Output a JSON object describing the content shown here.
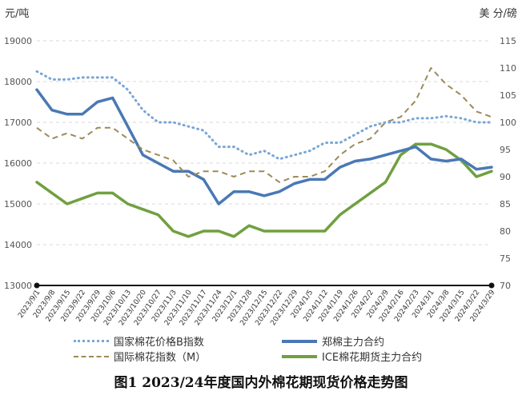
{
  "chart_data": {
    "type": "line",
    "caption": "图1  2023/24年度国内外棉花期现货价格走势图",
    "left_unit": "元/吨",
    "right_unit": "美 分/磅",
    "y_left": {
      "min": 13000,
      "max": 19000,
      "ticks": [
        "13000",
        "14000",
        "15000",
        "16000",
        "17000",
        "18000",
        "19000"
      ]
    },
    "y_right": {
      "min": 70,
      "max": 115,
      "ticks": [
        "70",
        "75",
        "80",
        "85",
        "90",
        "95",
        "100",
        "105",
        "110",
        "115"
      ]
    },
    "x_labels": [
      "2023/9/1",
      "2023/9/8",
      "2023/9/15",
      "2023/9/22",
      "2023/9/29",
      "2023/10/6",
      "2023/10/13",
      "2023/10/20",
      "2023/10/27",
      "2023/11/3",
      "2023/11/10",
      "2023/11/17",
      "2023/11/24",
      "2023/12/1",
      "2023/12/8",
      "2023/12/15",
      "2023/12/22",
      "2023/12/29",
      "2024/1/5",
      "2024/1/12",
      "2024/1/19",
      "2024/1/26",
      "2024/2/2",
      "2024/2/9",
      "2024/2/16",
      "2024/2/23",
      "2024/3/1",
      "2024/3/8",
      "2024/3/15",
      "2024/3/22",
      "2024/3/29"
    ],
    "grid": "horizontal dashed",
    "legend_position": "bottom",
    "series": [
      {
        "name": "国家棉花价格B指数",
        "axis": "left",
        "color": "#7aa6d6",
        "style": "dotted",
        "values": [
          18250,
          18050,
          18050,
          18100,
          18100,
          18100,
          17800,
          17300,
          17000,
          17000,
          16900,
          16800,
          16400,
          16400,
          16200,
          16300,
          16100,
          16200,
          16300,
          16500,
          16500,
          16700,
          16900,
          17000,
          17000,
          17100,
          17100,
          17150,
          17100,
          17000,
          17000
        ]
      },
      {
        "name": "国际棉花指数（M）",
        "axis": "right",
        "color": "#9c8a5a",
        "style": "dashed",
        "values": [
          99,
          97,
          98,
          97,
          99,
          99,
          97,
          95,
          94,
          93,
          90,
          91,
          91,
          90,
          91,
          91,
          89,
          90,
          90,
          91,
          94,
          96,
          97,
          100,
          101,
          104,
          110,
          107,
          105,
          102,
          101
        ]
      },
      {
        "name": "郑棉主力合约",
        "axis": "left",
        "color": "#4a78b5",
        "style": "solid",
        "values": [
          17800,
          17300,
          17200,
          17200,
          17500,
          17600,
          16900,
          16200,
          16000,
          15800,
          15800,
          15600,
          15000,
          15300,
          15300,
          15200,
          15300,
          15500,
          15600,
          15600,
          15900,
          16050,
          16100,
          16200,
          16300,
          16400,
          16100,
          16050,
          16100,
          15850,
          15900
        ]
      },
      {
        "name": "ICE棉花期货主力合约",
        "axis": "right",
        "color": "#70a040",
        "style": "solid",
        "values": [
          89,
          87,
          85,
          86,
          87,
          87,
          85,
          84,
          83,
          80,
          79,
          80,
          80,
          79,
          81,
          80,
          80,
          80,
          80,
          80,
          83,
          85,
          87,
          89,
          94,
          96,
          96,
          95,
          93,
          90,
          91
        ]
      }
    ]
  }
}
